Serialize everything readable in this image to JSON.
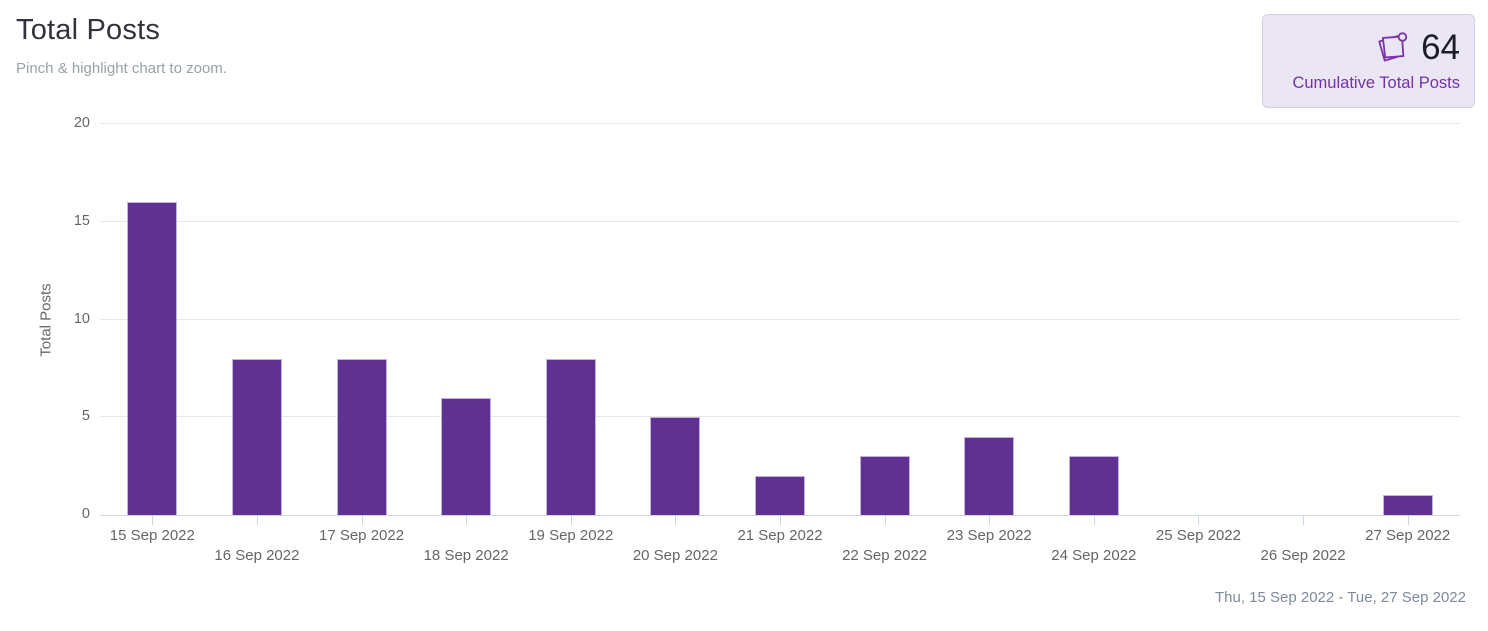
{
  "header": {
    "title": "Total Posts",
    "subtitle": "Pinch & highlight chart to zoom."
  },
  "summary_card": {
    "value": "64",
    "label": "Cumulative Total Posts",
    "icon": "sticky-note-icon"
  },
  "chart_data": {
    "type": "bar",
    "title": "Total Posts",
    "categories": [
      "15 Sep 2022",
      "16 Sep 2022",
      "17 Sep 2022",
      "18 Sep 2022",
      "19 Sep 2022",
      "20 Sep 2022",
      "21 Sep 2022",
      "22 Sep 2022",
      "23 Sep 2022",
      "24 Sep 2022",
      "25 Sep 2022",
      "26 Sep 2022",
      "27 Sep 2022"
    ],
    "values": [
      16,
      8,
      8,
      6,
      8,
      5,
      2,
      3,
      4,
      3,
      0,
      0,
      1
    ],
    "xlabel": "",
    "ylabel": "Total Posts",
    "yticks": [
      0,
      5,
      10,
      15,
      20
    ],
    "ylim": [
      0,
      20
    ],
    "grid": true,
    "legend": "none",
    "bar_color": "#613192",
    "bar_border_color": "#c5b1e0",
    "axis_line_color": "#ccd6eb",
    "gridline_color": "#e7e7e7"
  },
  "footer": {
    "date_range": "Thu, 15 Sep 2022 - Tue, 27 Sep 2022"
  }
}
